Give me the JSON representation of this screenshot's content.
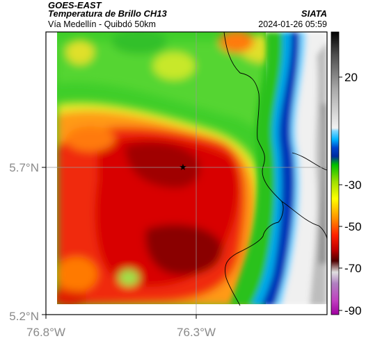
{
  "header": {
    "source": "GOES-EAST",
    "product": "Temperatura de Brillo CH13",
    "organization": "SIATA",
    "subtitle": "Vía Medellín - Quibdó 50km",
    "timestamp": "2024-01-26 05:59"
  },
  "axes": {
    "lat_ticks": [
      "5.7°N",
      "5.2°N"
    ],
    "lon_ticks": [
      "76.8°W",
      "76.3°W"
    ]
  },
  "colorbar": {
    "labels": [
      "20",
      "-30",
      "-50",
      "-70",
      "-90"
    ]
  },
  "marker": {
    "icon": "star-icon"
  },
  "colors": {
    "warm_white": "#f2f2f2",
    "cold_red": "#d40000",
    "coldest": "#6a0000"
  }
}
